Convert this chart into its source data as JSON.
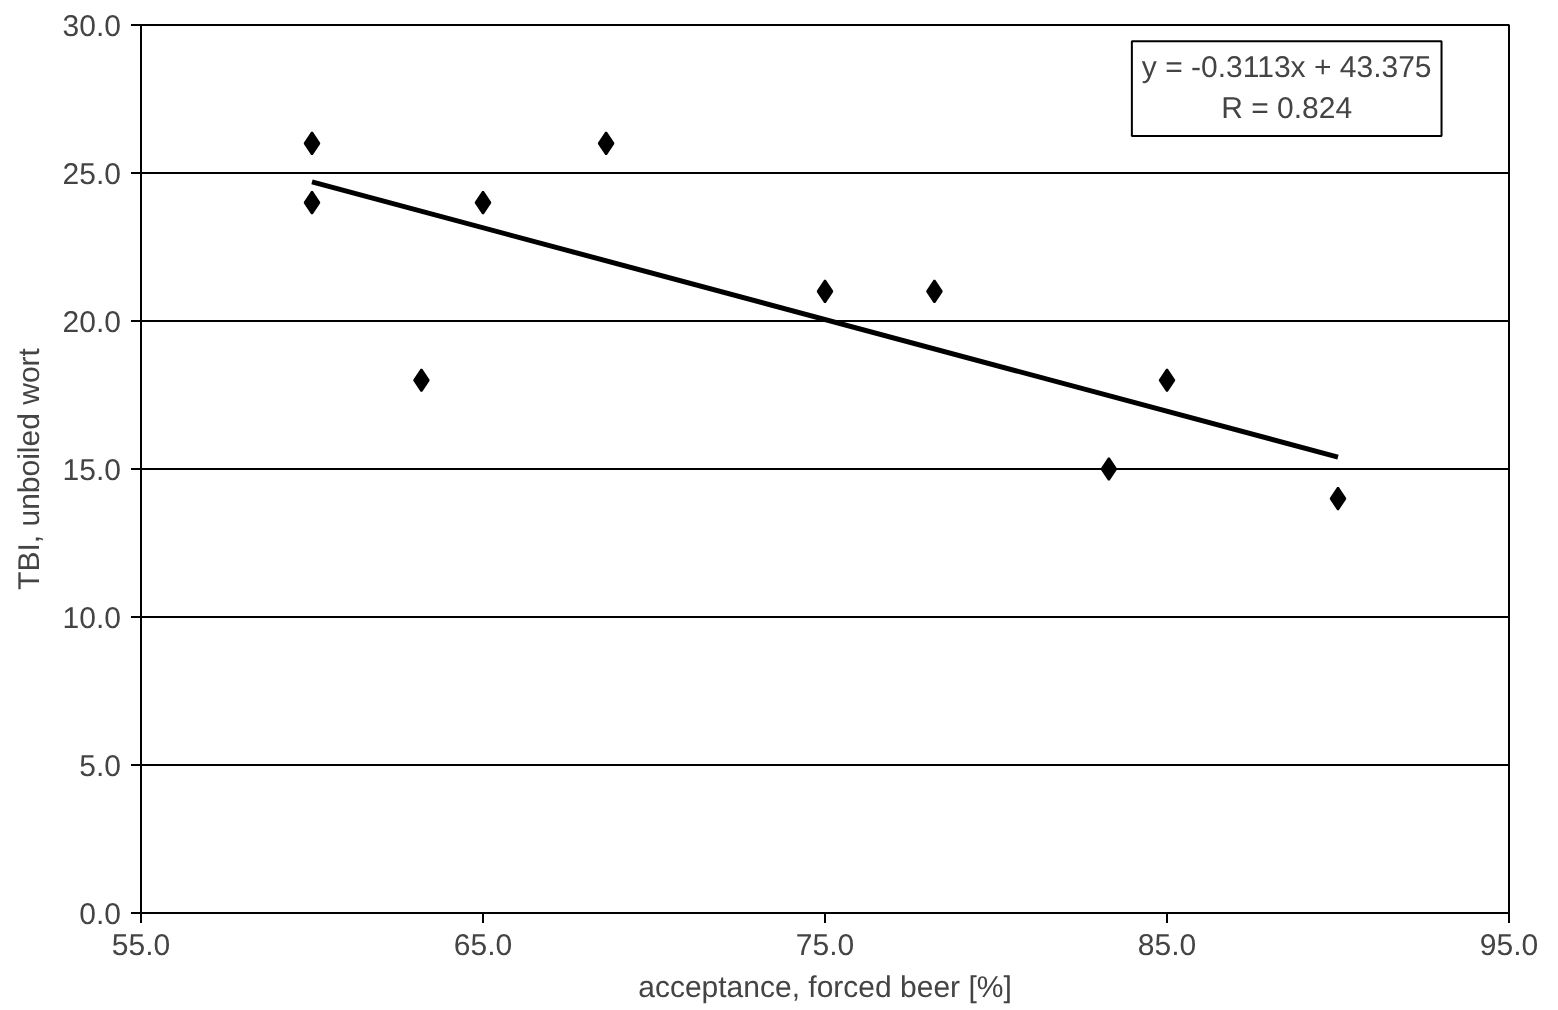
{
  "chart_data": {
    "type": "scatter",
    "xlabel": "acceptance, forced beer [%]",
    "ylabel": "TBI, unboiled wort",
    "xlim": [
      55,
      95
    ],
    "xticks": [
      {
        "value": 55,
        "label": "55.0"
      },
      {
        "value": 65,
        "label": "65.0"
      },
      {
        "value": 75,
        "label": "75.0"
      },
      {
        "value": 85,
        "label": "85.0"
      },
      {
        "value": 95,
        "label": "95.0"
      }
    ],
    "ylim": [
      0,
      30
    ],
    "yticks": [
      {
        "value": 0,
        "label": "0.0"
      },
      {
        "value": 5,
        "label": "5.0"
      },
      {
        "value": 10,
        "label": "10.0"
      },
      {
        "value": 15,
        "label": "15.0"
      },
      {
        "value": 20,
        "label": "20.0"
      },
      {
        "value": 25,
        "label": "25.0"
      },
      {
        "value": 30,
        "label": "30.0"
      }
    ],
    "grid": "y",
    "series": [
      {
        "color": "#000000",
        "marker": "diamond",
        "x": [
          60,
          60,
          63.2,
          65,
          68.6,
          75,
          78.2,
          83.3,
          85,
          90
        ],
        "values": [
          26,
          24,
          18,
          24,
          26,
          21,
          21,
          15,
          18,
          14
        ]
      },
      {
        "type": "line",
        "color": "#000000",
        "x": [
          60,
          90
        ],
        "values": [
          24.7,
          15.4
        ]
      }
    ],
    "annotations": [
      "y = -0.3113x + 43.375",
      "R = 0.824"
    ]
  }
}
